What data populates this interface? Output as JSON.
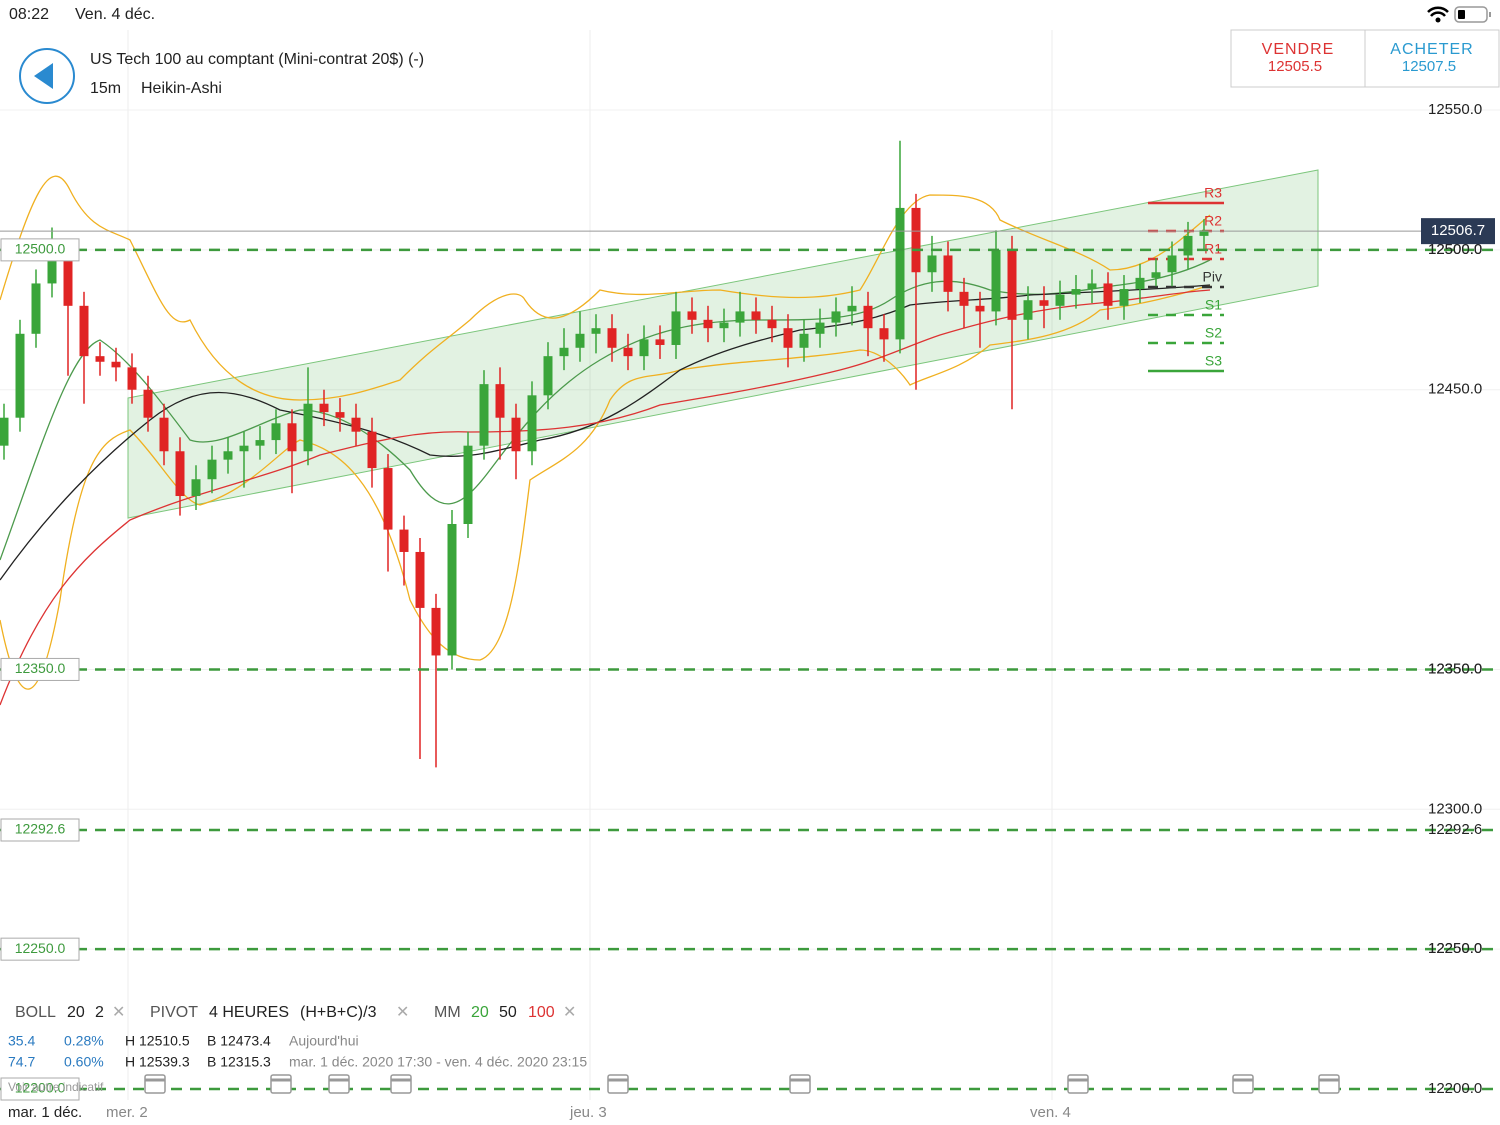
{
  "status_bar": {
    "time": "08:22",
    "date": "Ven. 4 déc."
  },
  "header": {
    "title": "US Tech 100 au comptant (Mini-contrat 20$) (-)",
    "interval": "15m",
    "chart_style": "Heikin-Ashi",
    "sell": {
      "label": "VENDRE",
      "price": "12505.5"
    },
    "buy": {
      "label": "ACHETER",
      "price": "12507.5"
    }
  },
  "chart_data": {
    "type": "candlestick",
    "time_labels": [
      "mar. 1 déc.",
      "mer. 2",
      "jeu. 3",
      "ven. 4"
    ],
    "open": [
      12430,
      12440,
      12470,
      12488,
      12497,
      12480,
      12462,
      12460,
      12458,
      12450,
      12440,
      12428,
      12412,
      12418,
      12425,
      12428,
      12430,
      12432,
      12438,
      12428,
      12445,
      12442,
      12440,
      12435,
      12422,
      12400,
      12392,
      12372,
      12355,
      12402,
      12430,
      12452,
      12440,
      12428,
      12448,
      12462,
      12465,
      12470,
      12472,
      12465,
      12462,
      12468,
      12466,
      12478,
      12475,
      12472,
      12474,
      12478,
      12475,
      12472,
      12465,
      12470,
      12474,
      12478,
      12480,
      12472,
      12468,
      12515,
      12492,
      12498,
      12485,
      12480,
      12478,
      12500,
      12475,
      12482,
      12480,
      12484,
      12486,
      12488,
      12480,
      12486,
      12490,
      12492,
      12498,
      12505
    ],
    "high": [
      12445,
      12475,
      12493,
      12508,
      12502,
      12485,
      12467,
      12465,
      12463,
      12455,
      12445,
      12433,
      12423,
      12430,
      12433,
      12435,
      12437,
      12443,
      12443,
      12458,
      12450,
      12447,
      12445,
      12440,
      12427,
      12405,
      12397,
      12377,
      12407,
      12435,
      12457,
      12458,
      12445,
      12453,
      12467,
      12472,
      12478,
      12477,
      12477,
      12470,
      12473,
      12473,
      12485,
      12483,
      12480,
      12479,
      12485,
      12483,
      12480,
      12477,
      12475,
      12479,
      12483,
      12487,
      12485,
      12477,
      12539,
      12520,
      12505,
      12503,
      12490,
      12485,
      12507,
      12505,
      12487,
      12487,
      12489,
      12491,
      12493,
      12492,
      12491,
      12495,
      12497,
      12503,
      12510,
      12511
    ],
    "low": [
      12425,
      12435,
      12465,
      12483,
      12455,
      12445,
      12455,
      12453,
      12445,
      12435,
      12423,
      12405,
      12407,
      12413,
      12420,
      12415,
      12425,
      12427,
      12413,
      12423,
      12437,
      12435,
      12430,
      12415,
      12385,
      12380,
      12318,
      12315,
      12350,
      12397,
      12425,
      12425,
      12418,
      12423,
      12443,
      12457,
      12460,
      12463,
      12460,
      12457,
      12457,
      12461,
      12461,
      12470,
      12467,
      12467,
      12469,
      12470,
      12467,
      12458,
      12460,
      12465,
      12469,
      12473,
      12462,
      12460,
      12463,
      12450,
      12485,
      12478,
      12472,
      12465,
      12473,
      12443,
      12468,
      12472,
      12475,
      12479,
      12481,
      12475,
      12475,
      12481,
      12487,
      12487,
      12493,
      12500
    ],
    "close": [
      12440,
      12470,
      12488,
      12497,
      12480,
      12462,
      12460,
      12458,
      12450,
      12440,
      12428,
      12412,
      12418,
      12425,
      12428,
      12430,
      12432,
      12438,
      12428,
      12445,
      12442,
      12440,
      12435,
      12422,
      12400,
      12392,
      12372,
      12355,
      12402,
      12430,
      12452,
      12440,
      12428,
      12448,
      12462,
      12465,
      12470,
      12472,
      12465,
      12462,
      12468,
      12466,
      12478,
      12475,
      12472,
      12474,
      12478,
      12475,
      12472,
      12465,
      12470,
      12474,
      12478,
      12480,
      12472,
      12468,
      12515,
      12492,
      12498,
      12485,
      12480,
      12478,
      12500,
      12475,
      12482,
      12480,
      12484,
      12486,
      12488,
      12480,
      12486,
      12490,
      12492,
      12498,
      12505,
      12507
    ],
    "up_color": "#3aa53a",
    "down_color": "#e02424",
    "ylim": [
      12196,
      12578
    ],
    "yticks": [
      {
        "value": 12250,
        "label": "12250.0"
      },
      {
        "value": 12300,
        "label": "12300.0"
      },
      {
        "value": 12350,
        "label": "12350.0"
      },
      {
        "value": 12450,
        "label": "12450.0"
      },
      {
        "value": 12500,
        "label": "12500.0"
      },
      {
        "value": 12550,
        "label": "12550.0"
      }
    ],
    "current_price": 12506.7,
    "levels": [
      {
        "value": 12500,
        "label": "12500.0"
      },
      {
        "value": 12350,
        "label": "12350.0"
      },
      12292.6,
      {
        "value": 12250,
        "label": "12250.0"
      },
      {
        "value": 12200,
        "label": "12200.0"
      }
    ],
    "pivot_labels": [
      "R3",
      "R2",
      "R1",
      "Piv",
      "S1",
      "S2",
      "S3"
    ]
  },
  "indicators": {
    "boll": [
      "BOLL",
      "20",
      "2"
    ],
    "pivot": [
      "PIVOT",
      "4 HEURES",
      "(H+B+C)/3"
    ],
    "mm": [
      "MM",
      "20",
      "50",
      "100"
    ]
  },
  "stats": [
    [
      "35.4",
      "0.28%",
      "H 12510.5",
      "B 12473.4",
      "Aujourd'hui"
    ],
    [
      "74.7",
      "0.60%",
      "H 12539.3",
      "B 12315.3",
      "mar. 1 déc. 2020 17:30 - ven. 4 déc. 2020 23:15"
    ]
  ],
  "other_symbol": "Voir autre indicatif"
}
